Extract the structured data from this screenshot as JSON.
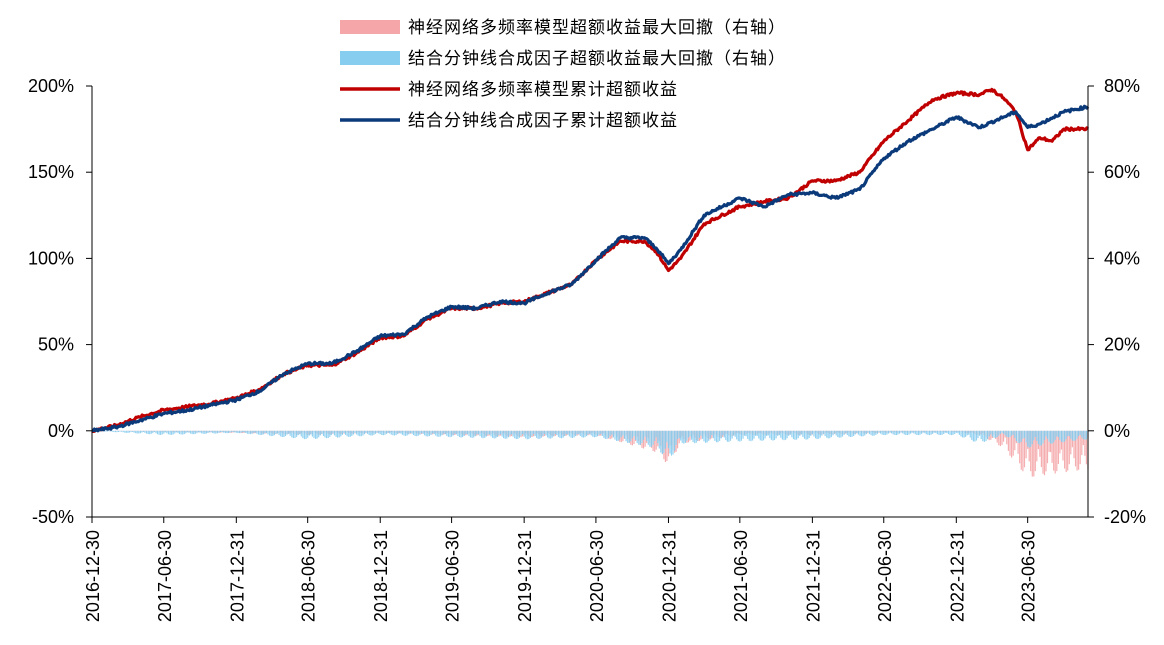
{
  "chart_data": {
    "type": "line",
    "x_ticks": [
      "2016-12-30",
      "2017-06-30",
      "2017-12-31",
      "2018-06-30",
      "2018-12-31",
      "2019-06-30",
      "2019-12-31",
      "2020-06-30",
      "2020-12-31",
      "2021-06-30",
      "2021-12-31",
      "2022-06-30",
      "2022-12-31",
      "2023-06-30"
    ],
    "y_left_ticks": [
      "-50%",
      "0%",
      "50%",
      "100%",
      "150%",
      "200%"
    ],
    "y_right_ticks": [
      "-20%",
      "0%",
      "20%",
      "40%",
      "60%",
      "80%"
    ],
    "y_left_range": [
      -50,
      200
    ],
    "y_right_range": [
      -20,
      80
    ],
    "x_range": [
      "2016-12-30",
      "2023-11-30"
    ],
    "legend": [
      {
        "label": "神经网络多频率模型超额收益最大回撤（右轴）",
        "type": "area",
        "color": "#f4a6a8"
      },
      {
        "label": "结合分钟线合成因子超额收益最大回撤（右轴）",
        "type": "area",
        "color": "#87cdf0"
      },
      {
        "label": "神经网络多频率模型累计超额收益",
        "type": "line",
        "color": "#c00000"
      },
      {
        "label": "结合分钟线合成因子累计超额收益",
        "type": "line",
        "color": "#0b3a7a"
      }
    ],
    "series": [
      {
        "name": "神经网络多频率模型累计超额收益",
        "axis": "left",
        "color": "#c00000",
        "points": [
          [
            "2016-12-30",
            0
          ],
          [
            "2017-02-28",
            3
          ],
          [
            "2017-04-30",
            8
          ],
          [
            "2017-06-30",
            12
          ],
          [
            "2017-08-31",
            14
          ],
          [
            "2017-10-31",
            16
          ],
          [
            "2017-12-31",
            19
          ],
          [
            "2018-02-28",
            24
          ],
          [
            "2018-04-30",
            33
          ],
          [
            "2018-06-30",
            38
          ],
          [
            "2018-08-31",
            38
          ],
          [
            "2018-10-31",
            45
          ],
          [
            "2018-12-31",
            54
          ],
          [
            "2019-02-28",
            55
          ],
          [
            "2019-04-30",
            65
          ],
          [
            "2019-06-30",
            71
          ],
          [
            "2019-08-31",
            71
          ],
          [
            "2019-10-31",
            74
          ],
          [
            "2019-12-31",
            75
          ],
          [
            "2020-02-29",
            80
          ],
          [
            "2020-04-30",
            85
          ],
          [
            "2020-06-30",
            99
          ],
          [
            "2020-08-31",
            110
          ],
          [
            "2020-10-31",
            110
          ],
          [
            "2020-11-30",
            104
          ],
          [
            "2020-12-31",
            93
          ],
          [
            "2021-01-31",
            100
          ],
          [
            "2021-03-31",
            120
          ],
          [
            "2021-06-30",
            130
          ],
          [
            "2021-08-31",
            133
          ],
          [
            "2021-10-31",
            135
          ],
          [
            "2021-12-31",
            145
          ],
          [
            "2022-02-28",
            145
          ],
          [
            "2022-04-30",
            150
          ],
          [
            "2022-06-30",
            168
          ],
          [
            "2022-08-31",
            180
          ],
          [
            "2022-10-31",
            192
          ],
          [
            "2022-12-31",
            196
          ],
          [
            "2023-02-28",
            195
          ],
          [
            "2023-03-31",
            198
          ],
          [
            "2023-04-30",
            193
          ],
          [
            "2023-05-31",
            185
          ],
          [
            "2023-06-30",
            163
          ],
          [
            "2023-07-31",
            170
          ],
          [
            "2023-08-31",
            168
          ],
          [
            "2023-09-30",
            175
          ],
          [
            "2023-11-30",
            175
          ]
        ]
      },
      {
        "name": "结合分钟线合成因子累计超额收益",
        "axis": "left",
        "color": "#0b3a7a",
        "points": [
          [
            "2016-12-30",
            0
          ],
          [
            "2017-02-28",
            2
          ],
          [
            "2017-04-30",
            6
          ],
          [
            "2017-06-30",
            10
          ],
          [
            "2017-08-31",
            12
          ],
          [
            "2017-10-31",
            15
          ],
          [
            "2017-12-31",
            18
          ],
          [
            "2018-02-28",
            23
          ],
          [
            "2018-04-30",
            33
          ],
          [
            "2018-06-30",
            39
          ],
          [
            "2018-08-31",
            39
          ],
          [
            "2018-10-31",
            46
          ],
          [
            "2018-12-31",
            55
          ],
          [
            "2019-02-28",
            56
          ],
          [
            "2019-04-30",
            66
          ],
          [
            "2019-06-30",
            72
          ],
          [
            "2019-08-31",
            71
          ],
          [
            "2019-10-31",
            75
          ],
          [
            "2019-12-31",
            74
          ],
          [
            "2020-02-29",
            80
          ],
          [
            "2020-04-30",
            85
          ],
          [
            "2020-06-30",
            99
          ],
          [
            "2020-08-31",
            112
          ],
          [
            "2020-10-31",
            112
          ],
          [
            "2020-11-30",
            106
          ],
          [
            "2020-12-31",
            97
          ],
          [
            "2021-01-31",
            105
          ],
          [
            "2021-03-31",
            125
          ],
          [
            "2021-06-30",
            135
          ],
          [
            "2021-08-31",
            130
          ],
          [
            "2021-10-31",
            137
          ],
          [
            "2021-12-31",
            138
          ],
          [
            "2022-02-28",
            135
          ],
          [
            "2022-04-30",
            140
          ],
          [
            "2022-06-30",
            158
          ],
          [
            "2022-08-31",
            168
          ],
          [
            "2022-10-31",
            175
          ],
          [
            "2022-12-31",
            182
          ],
          [
            "2023-02-28",
            176
          ],
          [
            "2023-04-30",
            182
          ],
          [
            "2023-05-31",
            185
          ],
          [
            "2023-06-30",
            176
          ],
          [
            "2023-07-31",
            178
          ],
          [
            "2023-09-30",
            185
          ],
          [
            "2023-11-30",
            188
          ]
        ]
      },
      {
        "name": "神经网络多频率模型超额收益最大回撤（右轴）",
        "axis": "right",
        "color": "#f4a6a8",
        "points": [
          [
            "2016-12-30",
            0
          ],
          [
            "2017-12-31",
            -0.5
          ],
          [
            "2018-06-30",
            -1
          ],
          [
            "2018-12-31",
            -0.5
          ],
          [
            "2019-06-30",
            -1
          ],
          [
            "2019-12-31",
            -1.5
          ],
          [
            "2020-06-30",
            -1
          ],
          [
            "2020-11-30",
            -5
          ],
          [
            "2020-12-31",
            -8
          ],
          [
            "2021-01-31",
            -3
          ],
          [
            "2021-06-30",
            -1
          ],
          [
            "2021-12-31",
            -1
          ],
          [
            "2022-06-30",
            -0.5
          ],
          [
            "2022-12-31",
            -0.3
          ],
          [
            "2023-02-28",
            -1
          ],
          [
            "2023-04-30",
            -4
          ],
          [
            "2023-06-30",
            -11
          ],
          [
            "2023-08-31",
            -10
          ],
          [
            "2023-11-30",
            -9
          ]
        ]
      },
      {
        "name": "结合分钟线合成因子超额收益最大回撤（右轴）",
        "axis": "right",
        "color": "#87cdf0",
        "points": [
          [
            "2016-12-30",
            0
          ],
          [
            "2017-06-30",
            -1
          ],
          [
            "2017-12-31",
            -0.5
          ],
          [
            "2018-06-30",
            -2
          ],
          [
            "2018-12-31",
            -1
          ],
          [
            "2019-06-30",
            -1.5
          ],
          [
            "2019-12-31",
            -2
          ],
          [
            "2020-06-30",
            -1.5
          ],
          [
            "2020-11-30",
            -4
          ],
          [
            "2020-12-31",
            -7
          ],
          [
            "2021-01-31",
            -3
          ],
          [
            "2021-06-30",
            -2.5
          ],
          [
            "2021-12-31",
            -2
          ],
          [
            "2022-06-30",
            -1
          ],
          [
            "2022-12-31",
            -1
          ],
          [
            "2023-02-28",
            -3
          ],
          [
            "2023-04-30",
            -1
          ],
          [
            "2023-06-30",
            -4
          ],
          [
            "2023-08-31",
            -3
          ],
          [
            "2023-11-30",
            -2
          ]
        ]
      }
    ],
    "grid": false,
    "legend_position": "top-center"
  }
}
